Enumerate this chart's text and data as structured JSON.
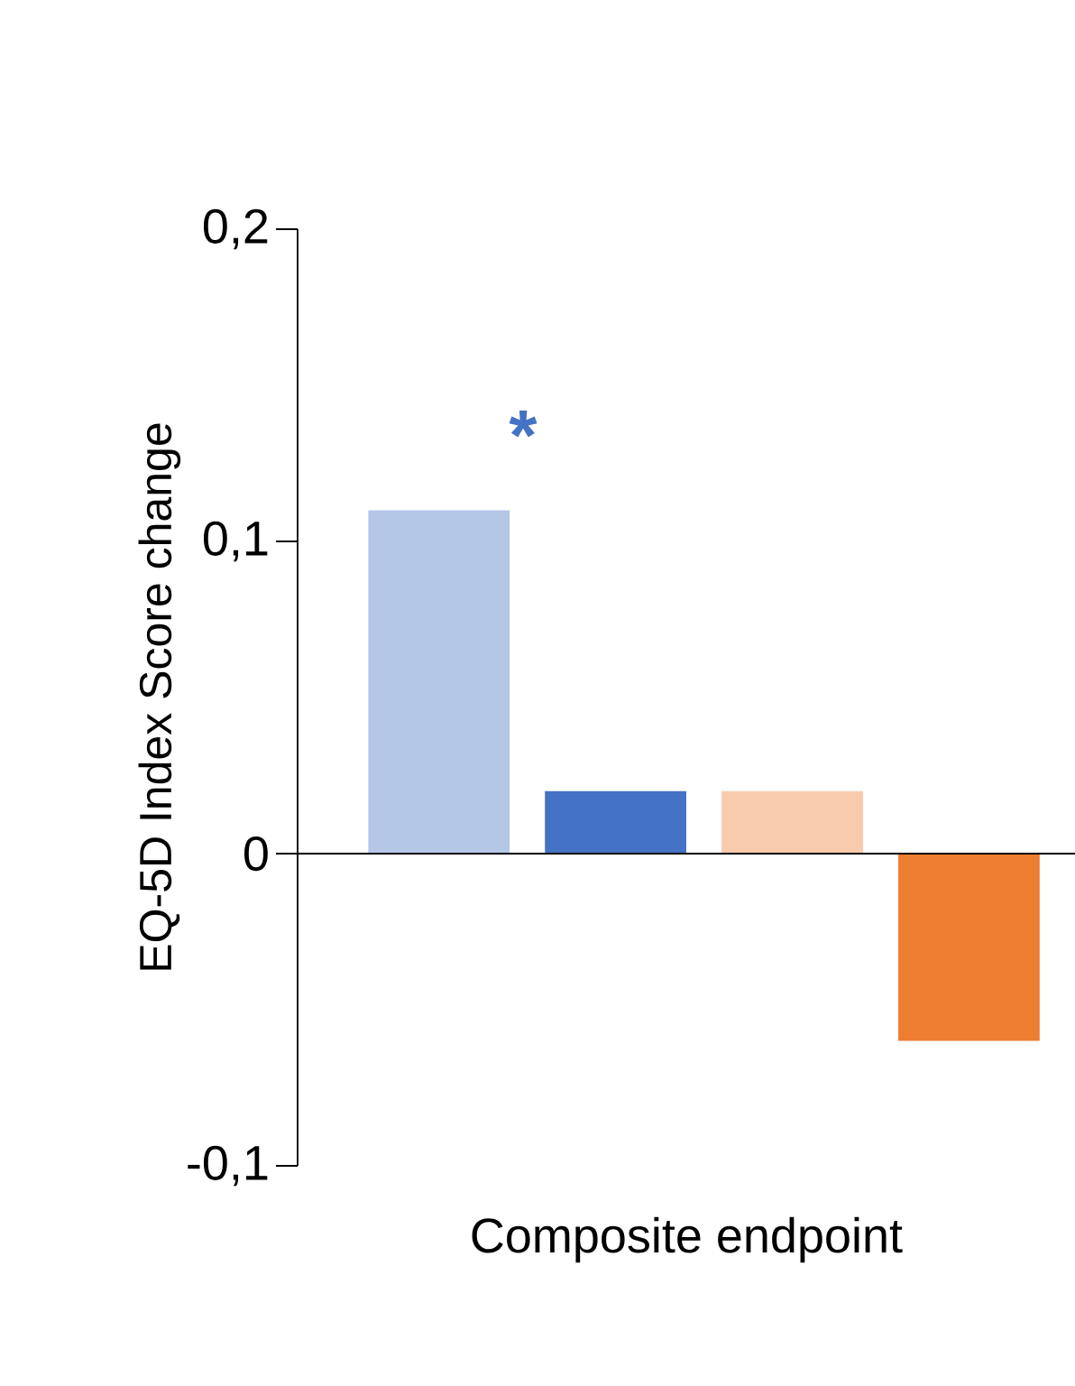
{
  "chart_data": {
    "type": "bar",
    "ylabel": "EQ-5D Index Score change",
    "xlabel": "Composite endpoint",
    "categories": [
      null,
      null,
      null,
      null
    ],
    "values": [
      0.11,
      0.02,
      0.02,
      -0.06
    ],
    "colors": [
      "#b4c7e7",
      "#4472c4",
      "#f8cbad",
      "#ed7d31"
    ],
    "ylim": [
      -0.1,
      0.2
    ],
    "yticks": [
      {
        "value": -0.1,
        "label": "-0,1"
      },
      0,
      {
        "value": 0.1,
        "label": "0,1"
      },
      {
        "value": 0.2,
        "label": "0,2"
      }
    ],
    "ref_lines": [
      {
        "axis": "y",
        "value": 0,
        "color": "#000000"
      }
    ],
    "annotations": [
      "*"
    ]
  }
}
